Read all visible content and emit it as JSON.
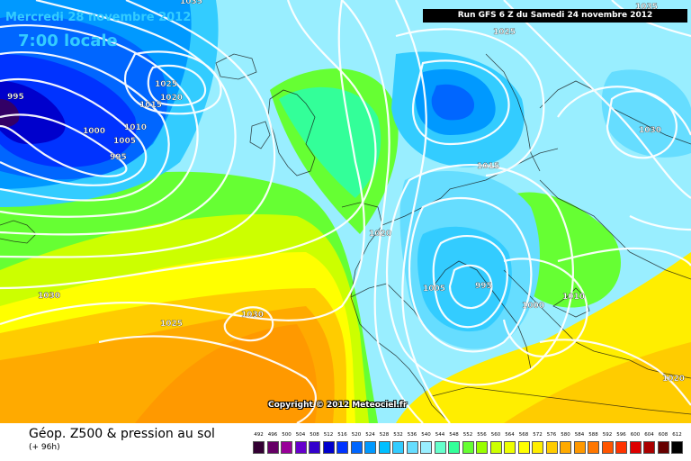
{
  "header": {
    "date": "Mercredi 28 novembre 2012",
    "time": "7:00 locale",
    "run": "Run GFS 6 Z du Samedi 24 novembre 2012"
  },
  "copyright": "Copyright © 2012 Meteociel.fr",
  "footer": {
    "title": "Géop. Z500 & pression au sol",
    "subtitle": "(+ 96h)"
  },
  "legend": {
    "ticks": [
      "492",
      "496",
      "500",
      "504",
      "508",
      "512",
      "516",
      "520",
      "524",
      "528",
      "532",
      "536",
      "540",
      "544",
      "548",
      "552",
      "556",
      "560",
      "564",
      "568",
      "572",
      "576",
      "580",
      "584",
      "588",
      "592",
      "596",
      "600",
      "604",
      "608",
      "612"
    ],
    "colors": [
      "#330033",
      "#660066",
      "#990099",
      "#6600cc",
      "#3300cc",
      "#0000cc",
      "#0033ff",
      "#0066ff",
      "#0099ff",
      "#00bfff",
      "#33ccff",
      "#66ddff",
      "#99eeff",
      "#66ffcc",
      "#33ff99",
      "#66ff33",
      "#99ff00",
      "#ccff00",
      "#eeff00",
      "#ffff00",
      "#ffee00",
      "#ffcc00",
      "#ffaa00",
      "#ff9900",
      "#ff7700",
      "#ff5500",
      "#ff3300",
      "#dd0000",
      "#aa0000",
      "#660000",
      "#000000"
    ]
  },
  "isobar_labels": [
    "995",
    "1000",
    "1005",
    "1010",
    "1015",
    "1020",
    "1025",
    "1030",
    "1035",
    "1025",
    "1015",
    "1020",
    "1005",
    "995",
    "1000",
    "1010",
    "1030",
    "1030",
    "1025",
    "1020",
    "995",
    "1030",
    "1035"
  ]
}
